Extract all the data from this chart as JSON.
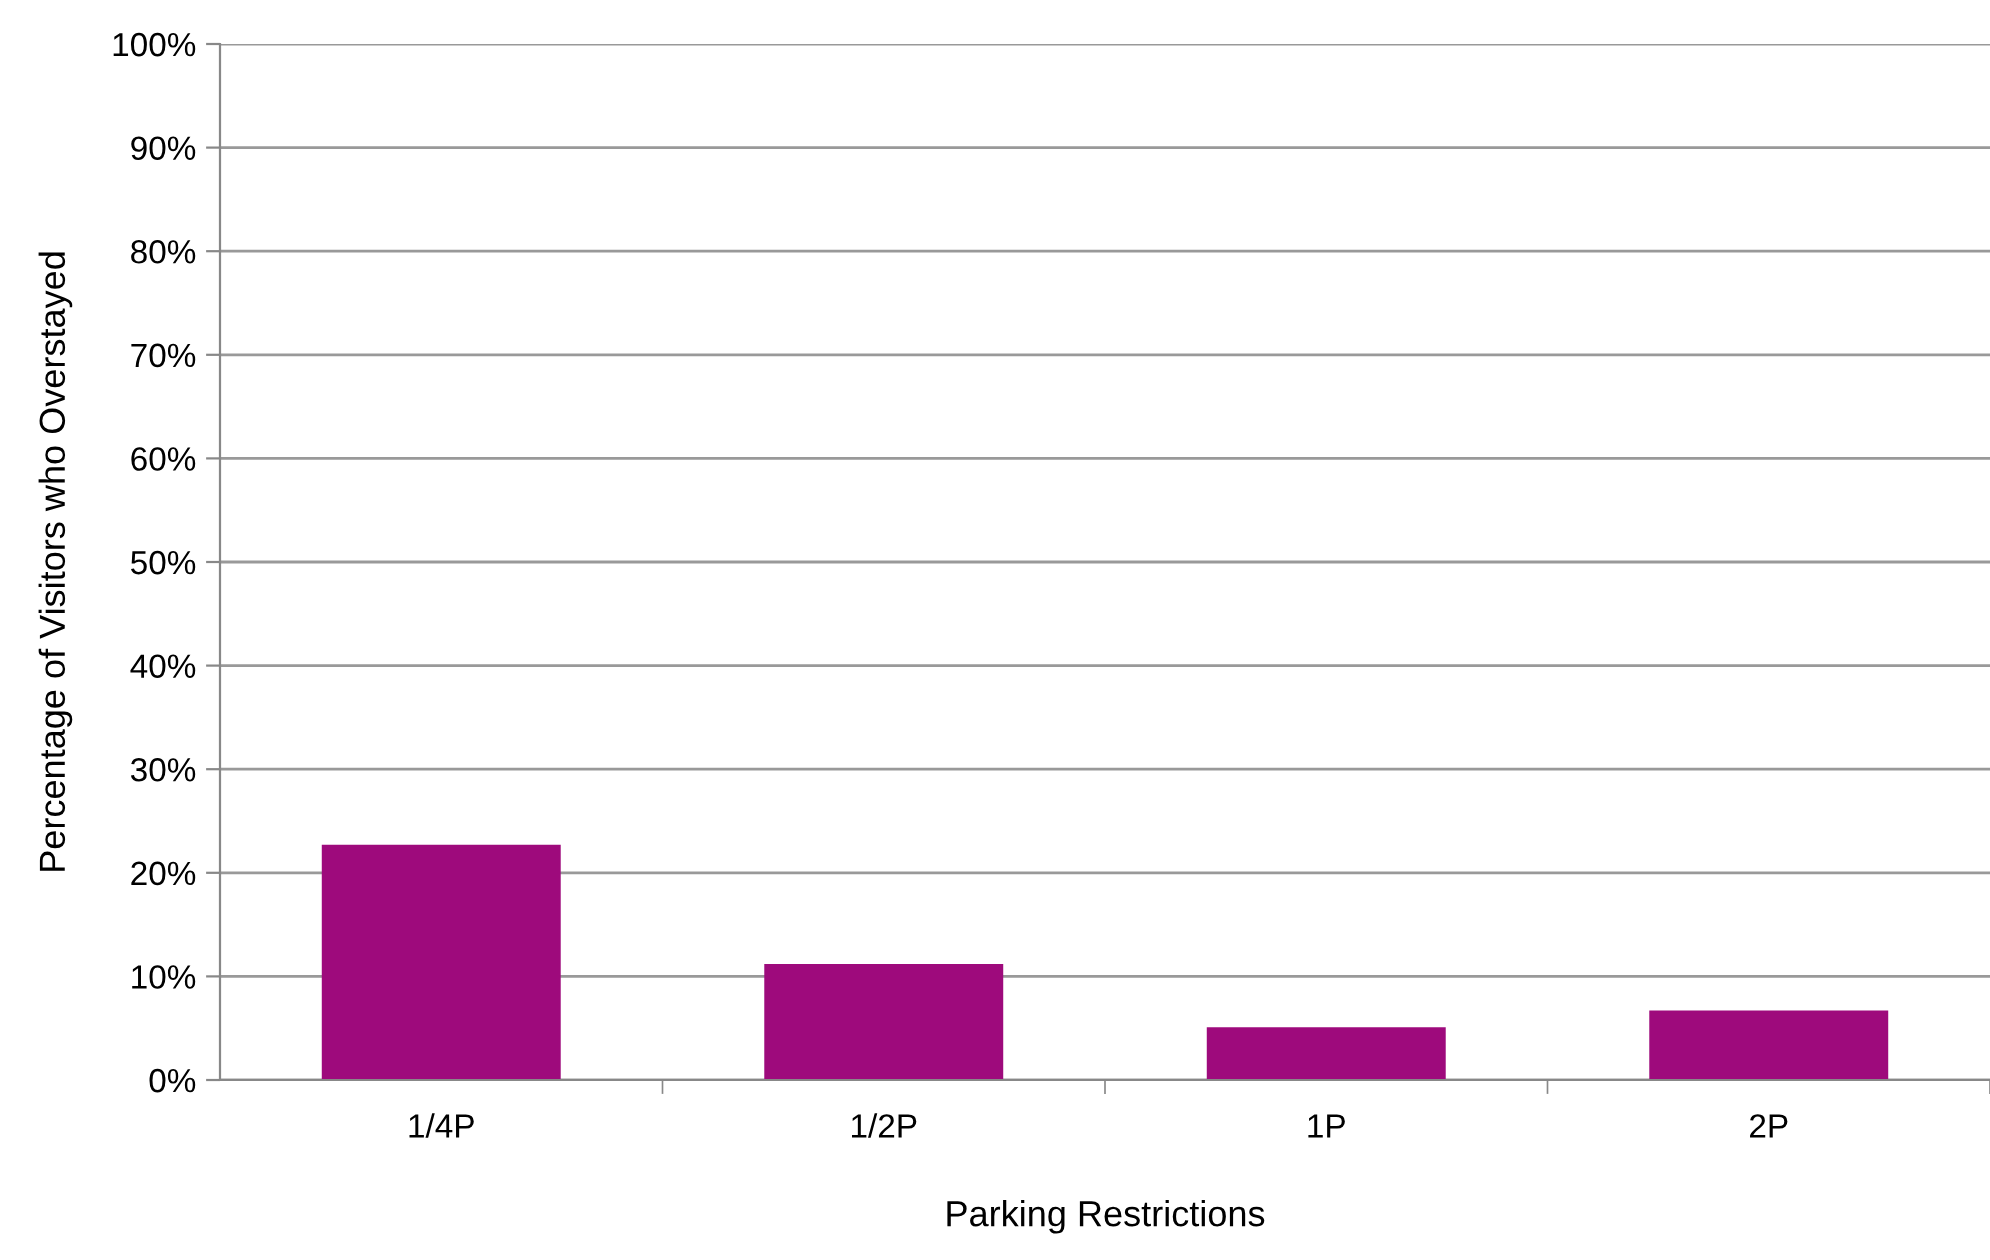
{
  "chart_data": {
    "type": "bar",
    "xlabel": "Parking Restrictions",
    "ylabel": "Percentage of Visitors who Overstayed",
    "categories": [
      "1/4P",
      "1/2P",
      "1P",
      "2P"
    ],
    "values": [
      22.7,
      11.2,
      5.1,
      6.7
    ],
    "color": "#9e0a7c",
    "ylim": [
      0,
      100
    ],
    "yticks": [
      {
        "value": 0,
        "label": "0%"
      },
      {
        "value": 10,
        "label": "10%"
      },
      {
        "value": 20,
        "label": "20%"
      },
      {
        "value": 30,
        "label": "30%"
      },
      {
        "value": 40,
        "label": "40%"
      },
      {
        "value": 50,
        "label": "50%"
      },
      {
        "value": 60,
        "label": "60%"
      },
      {
        "value": 70,
        "label": "70%"
      },
      {
        "value": 80,
        "label": "80%"
      },
      {
        "value": 90,
        "label": "90%"
      },
      {
        "value": 100,
        "label": "100%"
      }
    ],
    "grid": "y",
    "legend": false
  }
}
